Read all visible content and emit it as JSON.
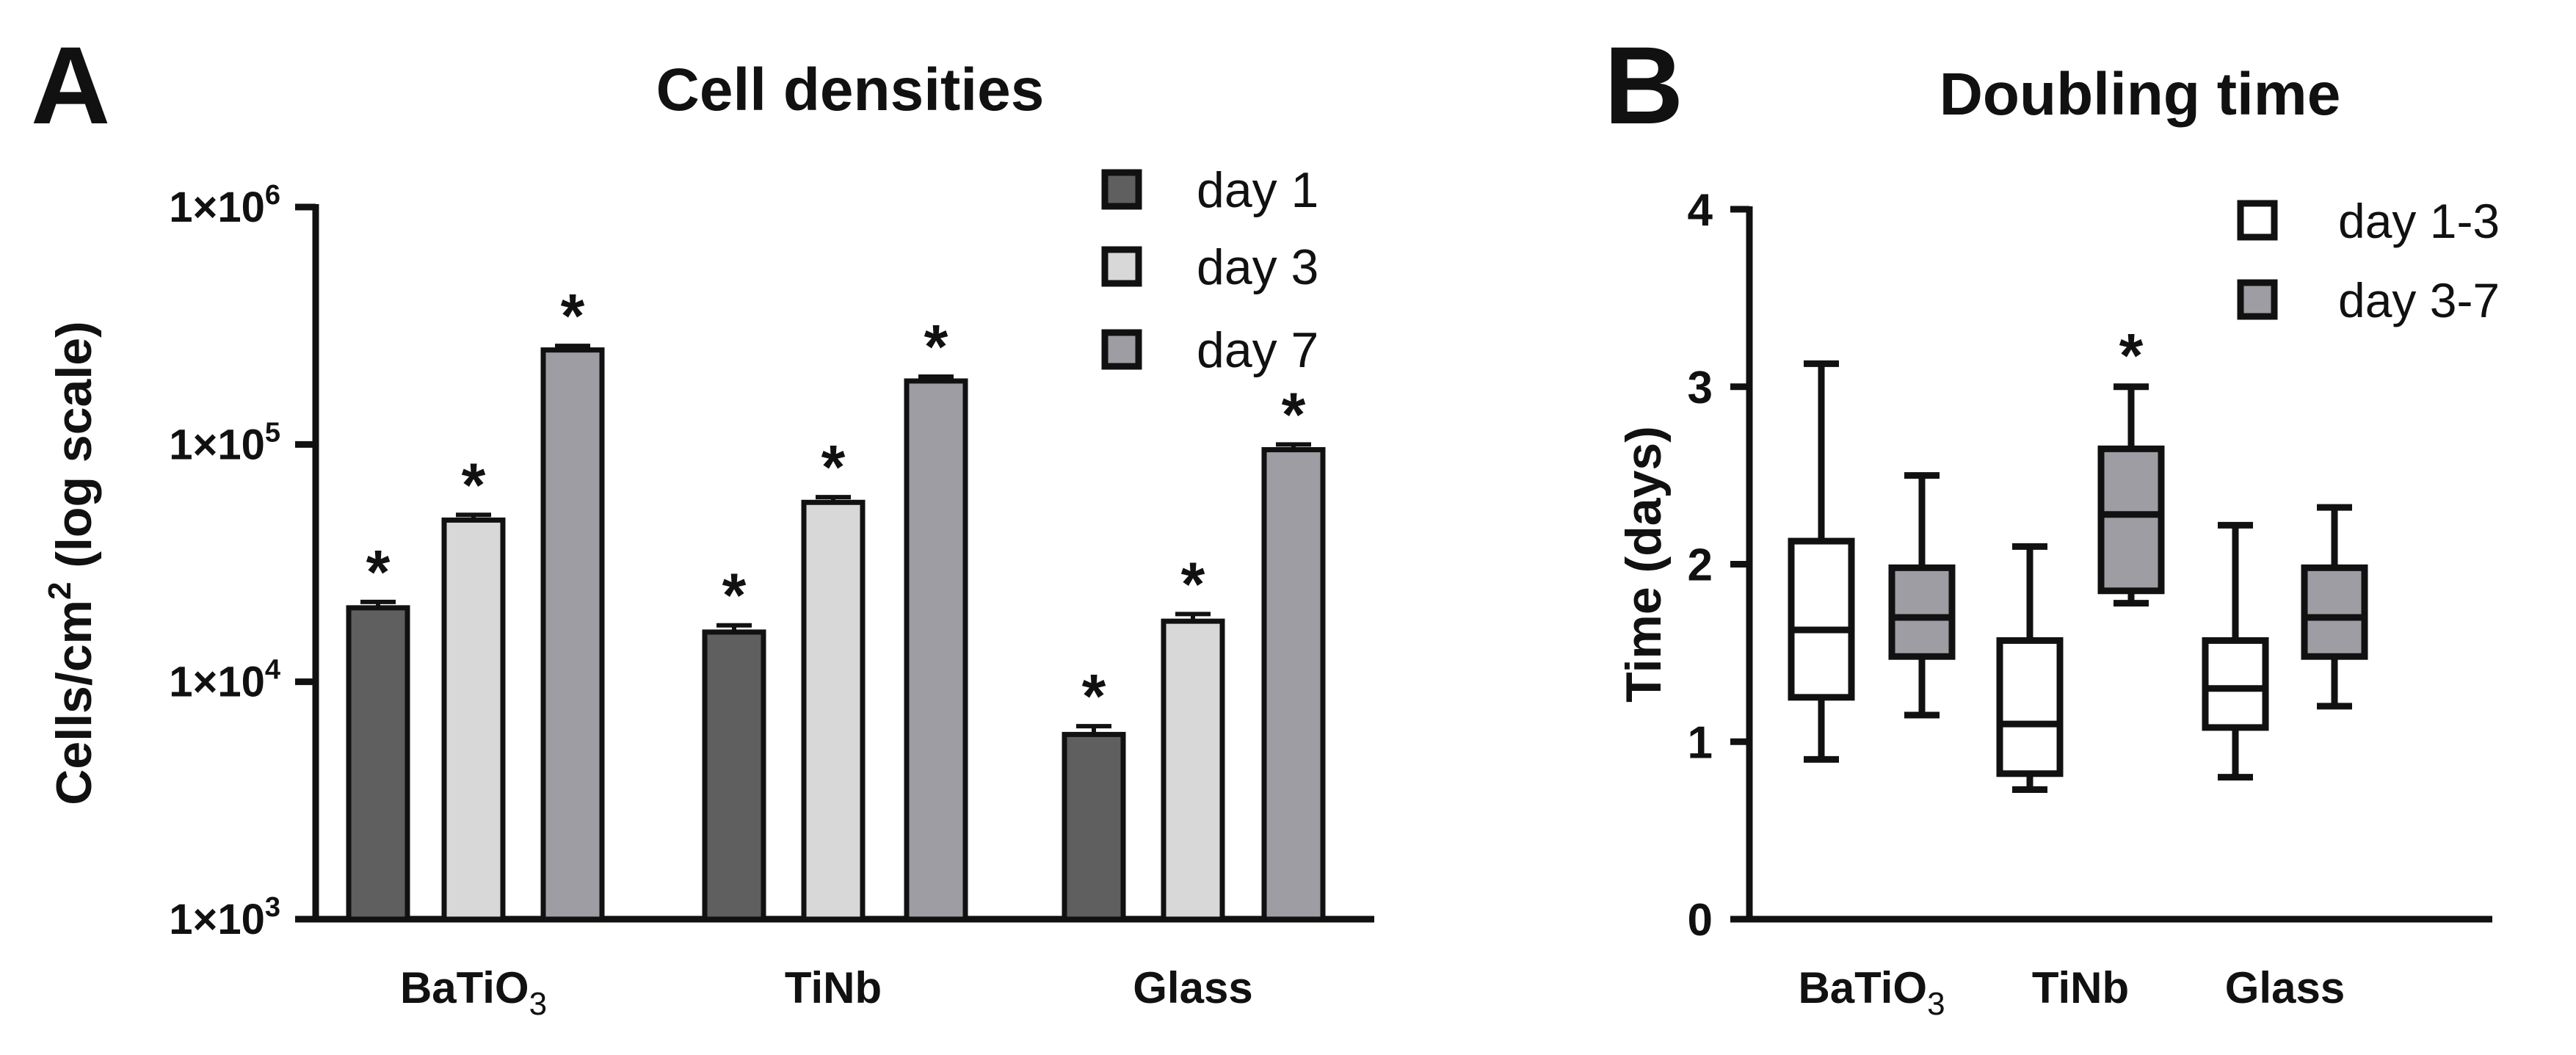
{
  "chart_data": [
    {
      "panel_label": "A",
      "type": "bar",
      "title": "Cell densities",
      "ylabel": "Cells/cm",
      "ylabel_sup": "2",
      "ylabel_suffix": " (log scale)",
      "yscale": "log",
      "ylim": [
        1000,
        1000000
      ],
      "yticks": [
        {
          "value": 1000,
          "base": "1×10",
          "exp": "3"
        },
        {
          "value": 10000,
          "base": "1×10",
          "exp": "4"
        },
        {
          "value": 100000,
          "base": "1×10",
          "exp": "5"
        },
        {
          "value": 1000000,
          "base": "1×10",
          "exp": "6"
        }
      ],
      "categories": [
        {
          "label": "BaTiO",
          "sub": "3"
        },
        {
          "label": "TiNb",
          "sub": ""
        },
        {
          "label": "Glass",
          "sub": ""
        }
      ],
      "series": [
        {
          "name": "day 1",
          "color": "#5f5f5f",
          "values": [
            20500,
            16200,
            6000
          ],
          "errors": [
            1200,
            1100,
            500
          ],
          "significance": [
            "*",
            "*",
            "*"
          ]
        },
        {
          "name": "day 3",
          "color": "#d8d8d8",
          "values": [
            48000,
            57000,
            18000
          ],
          "errors": [
            2500,
            3000,
            1300
          ],
          "significance": [
            "*",
            "*",
            "*"
          ]
        },
        {
          "name": "day 7",
          "color": "#9d9da3",
          "values": [
            250000,
            185000,
            95000
          ],
          "errors": [
            10000,
            8000,
            5000
          ],
          "significance": [
            "*",
            "*",
            "*"
          ]
        }
      ],
      "legend_position": "top-right"
    },
    {
      "panel_label": "B",
      "type": "box",
      "title": "Doubling time",
      "ylabel": "Time (days)",
      "ylim": [
        0,
        4
      ],
      "yticks": [
        0,
        1,
        2,
        3,
        4
      ],
      "categories": [
        {
          "label": "BaTiO",
          "sub": "3"
        },
        {
          "label": "TiNb",
          "sub": ""
        },
        {
          "label": "Glass",
          "sub": ""
        }
      ],
      "series": [
        {
          "name": "day 1-3",
          "color": "#ffffff",
          "boxes": [
            {
              "min": 0.9,
              "q1": 1.25,
              "median": 1.63,
              "q3": 2.13,
              "max": 3.13,
              "sig": ""
            },
            {
              "min": 0.73,
              "q1": 0.82,
              "median": 1.1,
              "q3": 1.57,
              "max": 2.1,
              "sig": ""
            },
            {
              "min": 0.8,
              "q1": 1.08,
              "median": 1.3,
              "q3": 1.57,
              "max": 2.22,
              "sig": ""
            }
          ]
        },
        {
          "name": "day 3-7",
          "color": "#9d9da3",
          "boxes": [
            {
              "min": 1.15,
              "q1": 1.48,
              "median": 1.7,
              "q3": 1.98,
              "max": 2.5,
              "sig": ""
            },
            {
              "min": 1.78,
              "q1": 1.85,
              "median": 2.28,
              "q3": 2.65,
              "max": 3.0,
              "sig": "*"
            },
            {
              "min": 1.2,
              "q1": 1.48,
              "median": 1.7,
              "q3": 1.98,
              "max": 2.32,
              "sig": ""
            }
          ]
        }
      ],
      "legend_position": "top-right"
    }
  ]
}
